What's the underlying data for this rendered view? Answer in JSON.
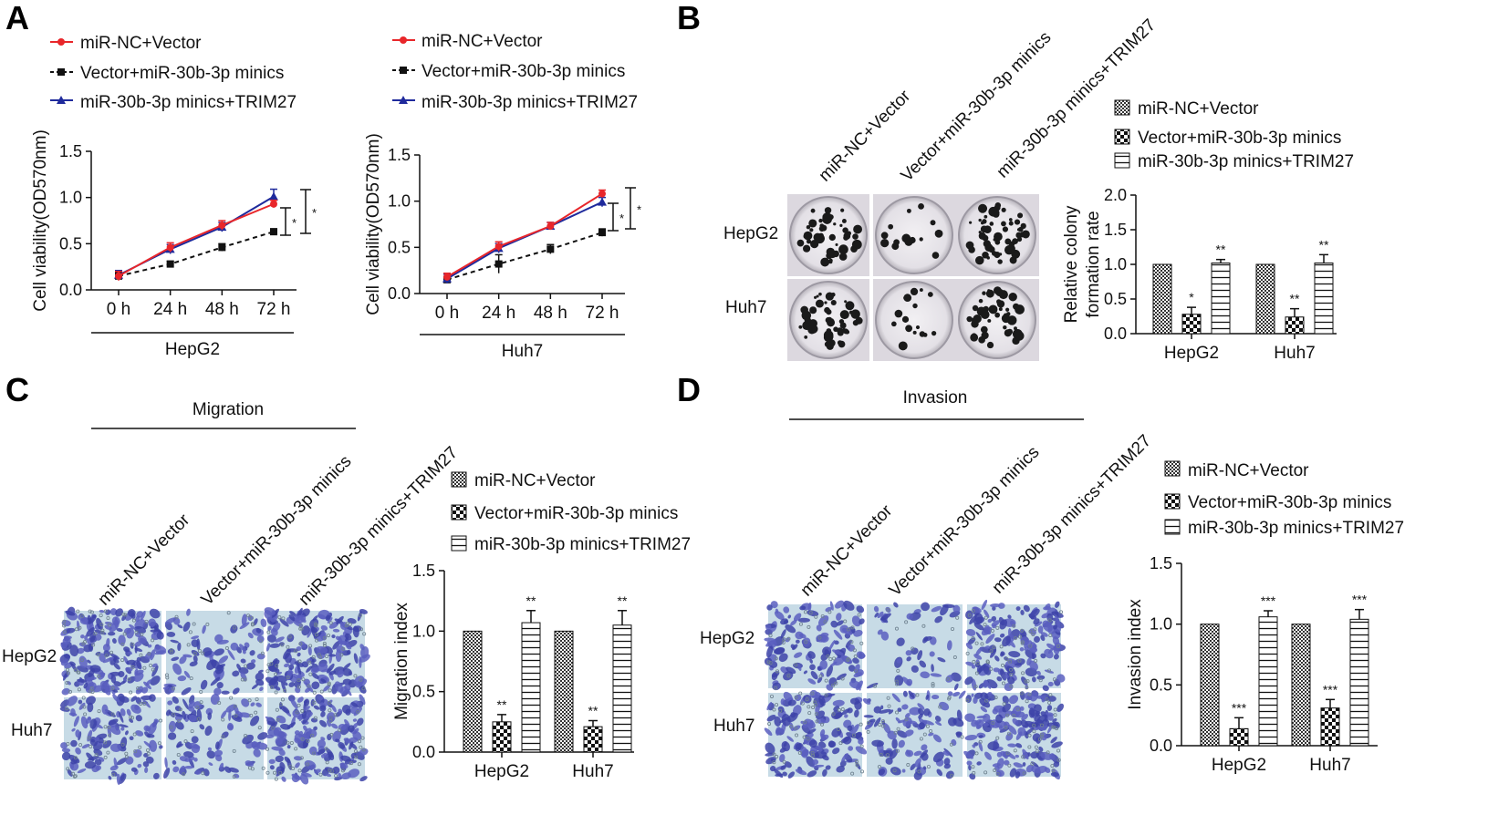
{
  "panels": {
    "A": "A",
    "B": "B",
    "C": "C",
    "D": "D"
  },
  "colors": {
    "nc": "#e8262a",
    "vec": "#111111",
    "trim": "#1f2a9c"
  },
  "legend": {
    "series": [
      "miR-NC+Vector",
      "Vector+miR-30b-3p minics",
      "miR-30b-3p minics+TRIM27"
    ]
  },
  "photos": {
    "column_labels": [
      "miR-NC+Vector",
      "Vector+miR-30b-3p minics",
      "miR-30b-3p minics+TRIM27"
    ],
    "row_labels": [
      "HepG2",
      "Huh7"
    ],
    "migration_title": "Migration",
    "invasion_title": "Invasion"
  },
  "chart_data": [
    {
      "id": "A-left",
      "type": "line",
      "xlabel": "HepG2",
      "ylabel": "Cell viability(OD570nm)",
      "x": [
        "0 h",
        "24 h",
        "48 h",
        "72 h"
      ],
      "ylim": [
        0.0,
        1.5
      ],
      "yticks": [
        "0.0",
        "0.5",
        "1.0",
        "1.5"
      ],
      "series": [
        {
          "name": "miR-NC+Vector",
          "values": [
            0.15,
            0.46,
            0.7,
            0.93
          ],
          "errors": [
            0.05,
            0.05,
            0.05,
            0.04
          ]
        },
        {
          "name": "Vector+miR-30b-3p minics",
          "values": [
            0.15,
            0.28,
            0.46,
            0.63
          ],
          "errors": [
            0.04,
            0.03,
            0.04,
            0.03
          ]
        },
        {
          "name": "miR-30b-3p minics+TRIM27",
          "values": [
            0.16,
            0.44,
            0.68,
            1.01
          ],
          "errors": [
            0.05,
            0.05,
            0.05,
            0.08
          ]
        }
      ],
      "annotations": [
        "*",
        "*"
      ]
    },
    {
      "id": "A-right",
      "type": "line",
      "xlabel": "Huh7",
      "ylabel": "Cell viability(OD570nm)",
      "x": [
        "0 h",
        "24 h",
        "48 h",
        "72 h"
      ],
      "ylim": [
        0.0,
        1.5
      ],
      "yticks": [
        "0.0",
        "0.5",
        "1.0",
        "1.5"
      ],
      "series": [
        {
          "name": "miR-NC+Vector",
          "values": [
            0.18,
            0.51,
            0.73,
            1.08
          ],
          "errors": [
            0.04,
            0.05,
            0.04,
            0.04
          ]
        },
        {
          "name": "Vector+miR-30b-3p minics",
          "values": [
            0.15,
            0.32,
            0.48,
            0.66
          ],
          "errors": [
            0.03,
            0.1,
            0.05,
            0.04
          ]
        },
        {
          "name": "miR-30b-3p minics+TRIM27",
          "values": [
            0.16,
            0.49,
            0.73,
            0.99
          ],
          "errors": [
            0.05,
            0.05,
            0.04,
            0.05
          ]
        }
      ],
      "annotations": [
        "*",
        "*"
      ]
    },
    {
      "id": "B",
      "type": "bar",
      "ylabel": "Relative colony formation rate",
      "categories": [
        "HepG2",
        "Huh7"
      ],
      "ylim": [
        0.0,
        2.0
      ],
      "yticks": [
        "0.0",
        "0.5",
        "1.0",
        "1.5",
        "2.0"
      ],
      "series": [
        {
          "name": "miR-NC+Vector",
          "values": [
            1.0,
            1.0
          ],
          "errors": [
            0,
            0
          ]
        },
        {
          "name": "Vector+miR-30b-3p minics",
          "values": [
            0.28,
            0.24
          ],
          "errors": [
            0.1,
            0.12
          ]
        },
        {
          "name": "miR-30b-3p minics+TRIM27",
          "values": [
            1.02,
            1.02
          ],
          "errors": [
            0.05,
            0.12
          ]
        }
      ],
      "annotations": [
        [
          "",
          "*",
          "**"
        ],
        [
          "",
          "**",
          "**"
        ]
      ]
    },
    {
      "id": "C",
      "type": "bar",
      "ylabel": "Migration index",
      "categories": [
        "HepG2",
        "Huh7"
      ],
      "ylim": [
        0.0,
        1.5
      ],
      "yticks": [
        "0.0",
        "0.5",
        "1.0",
        "1.5"
      ],
      "series": [
        {
          "name": "miR-NC+Vector",
          "values": [
            1.0,
            1.0
          ],
          "errors": [
            0,
            0
          ]
        },
        {
          "name": "Vector+miR-30b-3p minics",
          "values": [
            0.25,
            0.21
          ],
          "errors": [
            0.06,
            0.05
          ]
        },
        {
          "name": "miR-30b-3p minics+TRIM27",
          "values": [
            1.07,
            1.05
          ],
          "errors": [
            0.1,
            0.12
          ]
        }
      ],
      "annotations": [
        [
          "",
          "**",
          "**"
        ],
        [
          "",
          "**",
          "**"
        ]
      ]
    },
    {
      "id": "D",
      "type": "bar",
      "ylabel": "Invasion index",
      "categories": [
        "HepG2",
        "Huh7"
      ],
      "ylim": [
        0.0,
        1.5
      ],
      "yticks": [
        "0.0",
        "0.5",
        "1.0",
        "1.5"
      ],
      "series": [
        {
          "name": "miR-NC+Vector",
          "values": [
            1.0,
            1.0
          ],
          "errors": [
            0,
            0
          ]
        },
        {
          "name": "Vector+miR-30b-3p minics",
          "values": [
            0.14,
            0.31
          ],
          "errors": [
            0.09,
            0.07
          ]
        },
        {
          "name": "miR-30b-3p minics+TRIM27",
          "values": [
            1.06,
            1.04
          ],
          "errors": [
            0.05,
            0.08
          ]
        }
      ],
      "annotations": [
        [
          "",
          "***",
          "***"
        ],
        [
          "",
          "***",
          "***"
        ]
      ]
    }
  ]
}
